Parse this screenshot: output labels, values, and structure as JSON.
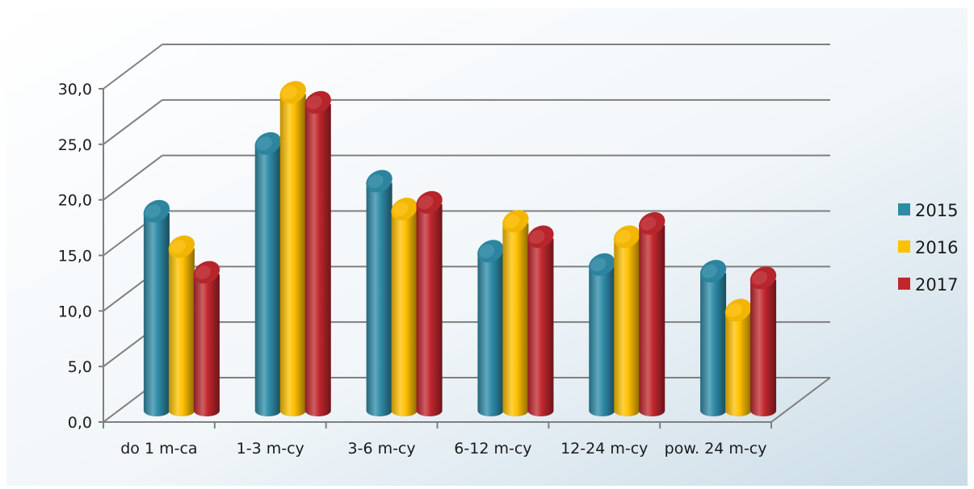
{
  "chart_data": {
    "type": "bar",
    "subtype": "3d-cylinder",
    "categories": [
      "do 1 m-ca",
      "1-3 m-cy",
      "3-6 m-cy",
      "6-12 m-cy",
      "12-24 m-cy",
      "pow. 24 m-cy"
    ],
    "series": [
      {
        "name": "2015",
        "color": "#2e8ba7",
        "values": [
          17.8,
          23.9,
          20.5,
          14.2,
          13.0,
          12.4
        ]
      },
      {
        "name": "2016",
        "color": "#ffc000",
        "values": [
          14.6,
          28.5,
          18.0,
          16.9,
          15.5,
          8.9
        ]
      },
      {
        "name": "2017",
        "color": "#c0272d",
        "values": [
          12.3,
          27.6,
          18.6,
          15.5,
          16.7,
          11.8
        ]
      }
    ],
    "ylim": [
      0,
      30
    ],
    "yticks": [
      "0,0",
      "5,0",
      "10,0",
      "15,0",
      "20,0",
      "25,0",
      "30,0"
    ],
    "grid": true,
    "legend_position": "right",
    "background": "#dce8ef"
  }
}
